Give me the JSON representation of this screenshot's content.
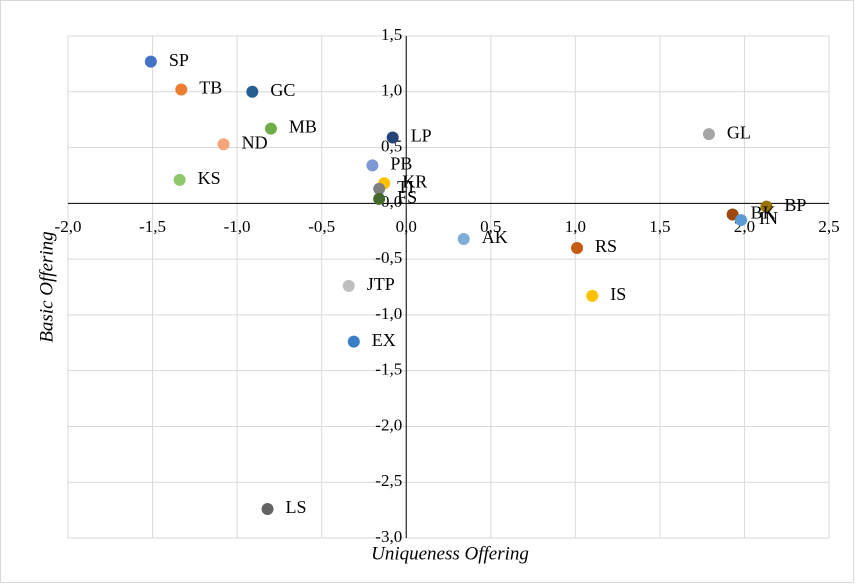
{
  "chart_data": {
    "type": "scatter",
    "xlabel": "Uniqueness Offering",
    "ylabel": "Basic Offering",
    "labels": [
      "SP",
      "TB",
      "GC",
      "MB",
      "ND",
      "KS",
      "LP",
      "PB",
      "KR",
      "TI",
      "FS",
      "AK",
      "RS",
      "IS",
      "GL",
      "BP",
      "BK",
      "IN",
      "JTP",
      "EX",
      "LS"
    ],
    "x": [
      -1.51,
      -1.33,
      -0.91,
      -0.8,
      -1.08,
      -1.34,
      -0.08,
      -0.2,
      -0.13,
      -0.16,
      -0.16,
      0.34,
      1.01,
      1.1,
      1.79,
      2.13,
      1.93,
      1.98,
      -0.34,
      -0.31,
      -0.82
    ],
    "values": [
      1.27,
      1.02,
      1.0,
      0.67,
      0.53,
      0.21,
      0.59,
      0.34,
      0.18,
      0.13,
      0.04,
      -0.32,
      -0.4,
      -0.83,
      0.62,
      -0.03,
      -0.1,
      -0.15,
      -0.74,
      -1.24,
      -2.74
    ],
    "colors": [
      "#4472c4",
      "#ed7d31",
      "#255e91",
      "#70ad47",
      "#f4a57a",
      "#8fc86b",
      "#264478",
      "#7c97d4",
      "#ffc000",
      "#7f7f7f",
      "#43682b",
      "#7faed9",
      "#c55a11",
      "#ffc000",
      "#a5a5a5",
      "#997300",
      "#9e480e",
      "#5b9bd5",
      "#bfbfbf",
      "#3a7fc6",
      "#636363"
    ],
    "xlim": [
      -2.0,
      2.5
    ],
    "xticks": [
      {
        "value": -2.0,
        "label": "-2,0"
      },
      {
        "value": -1.5,
        "label": "-1,5"
      },
      {
        "value": -1.0,
        "label": "-1,0"
      },
      {
        "value": -0.5,
        "label": "-0,5"
      },
      {
        "value": 0,
        "label": "0,0"
      },
      {
        "value": 0.5,
        "label": "0,5"
      },
      {
        "value": 1.0,
        "label": "1,0"
      },
      {
        "value": 1.5,
        "label": "1,5"
      },
      {
        "value": 2.0,
        "label": "2,0"
      },
      {
        "value": 2.5,
        "label": "2,5"
      }
    ],
    "ylim": [
      -3.0,
      1.5
    ],
    "yticks": [
      {
        "value": 1.5,
        "label": "1,5"
      },
      {
        "value": 1.0,
        "label": "1,0"
      },
      {
        "value": 0.5,
        "label": "0,5"
      },
      {
        "value": 0,
        "label": "0,0"
      },
      {
        "value": -0.5,
        "label": "-0,5"
      },
      {
        "value": -1.0,
        "label": "-1,0"
      },
      {
        "value": -1.5,
        "label": "-1,5"
      },
      {
        "value": -2.0,
        "label": "-2,0"
      },
      {
        "value": -2.5,
        "label": "-2,5"
      },
      {
        "value": -3.0,
        "label": "-3,0"
      }
    ],
    "grid": true
  }
}
